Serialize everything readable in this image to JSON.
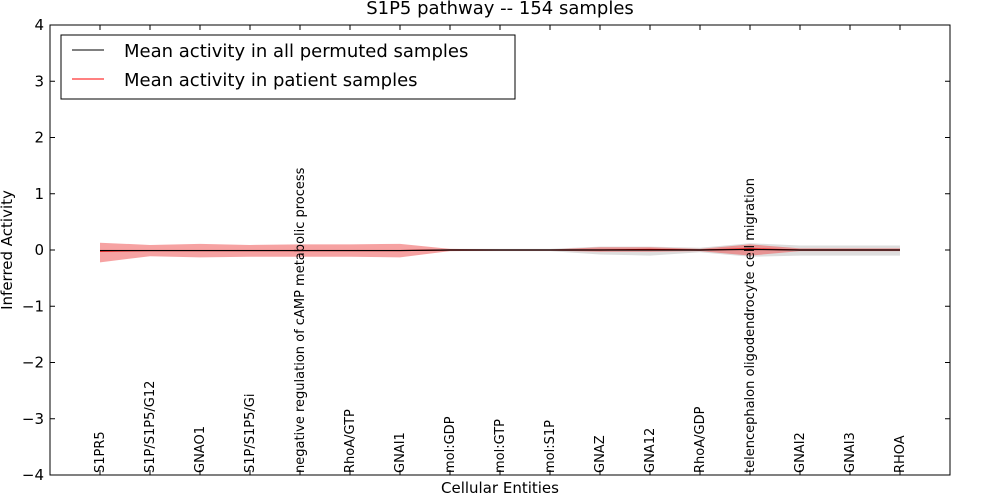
{
  "chart_data": {
    "type": "line",
    "title": "S1P5 pathway -- 154 samples",
    "xlabel": "Cellular Entities",
    "ylabel": "Inferred Activity",
    "ylim": [
      -4,
      4
    ],
    "yticks": [
      4,
      3,
      2,
      1,
      0,
      -1,
      -2,
      -3,
      -4
    ],
    "ytick_labels": [
      "4",
      "3",
      "2",
      "1",
      "0",
      "−1",
      "−2",
      "−3",
      "−4"
    ],
    "categories": [
      "S1PR5",
      "S1P/S1P5/G12",
      "GNAO1",
      "S1P/S1P5/Gi",
      "negative regulation of cAMP metabolic process",
      "RhoA/GTP",
      "GNAI1",
      "mol:GDP",
      "mol:GTP",
      "mol:S1P",
      "GNAZ",
      "GNA12",
      "RhoA/GDP",
      "telencephalon oligodendrocyte cell migration",
      "GNAI2",
      "GNAI3",
      "RHOA"
    ],
    "series": [
      {
        "name": "Mean activity in all permuted samples",
        "color": "#000000",
        "values": [
          -0.01,
          -0.01,
          -0.01,
          -0.01,
          -0.01,
          -0.01,
          -0.01,
          0,
          0,
          0,
          0,
          0,
          0,
          0.01,
          0,
          0,
          0
        ],
        "band_upper": [
          0.01,
          0.01,
          0.01,
          0.01,
          0.01,
          0.01,
          0.01,
          0.02,
          0.02,
          0.02,
          0.06,
          0.06,
          0.04,
          0.12,
          0.08,
          0.08,
          0.08
        ],
        "band_lower": [
          -0.02,
          -0.02,
          -0.02,
          -0.02,
          -0.02,
          -0.02,
          -0.02,
          -0.02,
          -0.02,
          -0.02,
          -0.08,
          -0.1,
          -0.04,
          -0.12,
          -0.1,
          -0.1,
          -0.1
        ],
        "band_color": "#bbbbbb"
      },
      {
        "name": "Mean activity in patient samples",
        "color": "#ff0000",
        "values": [
          -0.02,
          -0.01,
          -0.01,
          -0.01,
          -0.01,
          -0.01,
          -0.01,
          0,
          0,
          0,
          0,
          0.01,
          0,
          0.02,
          0,
          0,
          0
        ],
        "band_upper": [
          0.13,
          0.09,
          0.11,
          0.09,
          0.1,
          0.1,
          0.11,
          0.02,
          0.01,
          0.01,
          0.05,
          0.05,
          0.02,
          0.1,
          0.03,
          0.03,
          0.03
        ],
        "band_lower": [
          -0.22,
          -0.11,
          -0.13,
          -0.12,
          -0.12,
          -0.12,
          -0.13,
          -0.02,
          -0.01,
          -0.01,
          -0.03,
          -0.03,
          -0.02,
          -0.1,
          -0.02,
          -0.02,
          -0.02
        ],
        "band_color": "#ee5555"
      }
    ],
    "legend_position": "top-left",
    "grid": false
  }
}
